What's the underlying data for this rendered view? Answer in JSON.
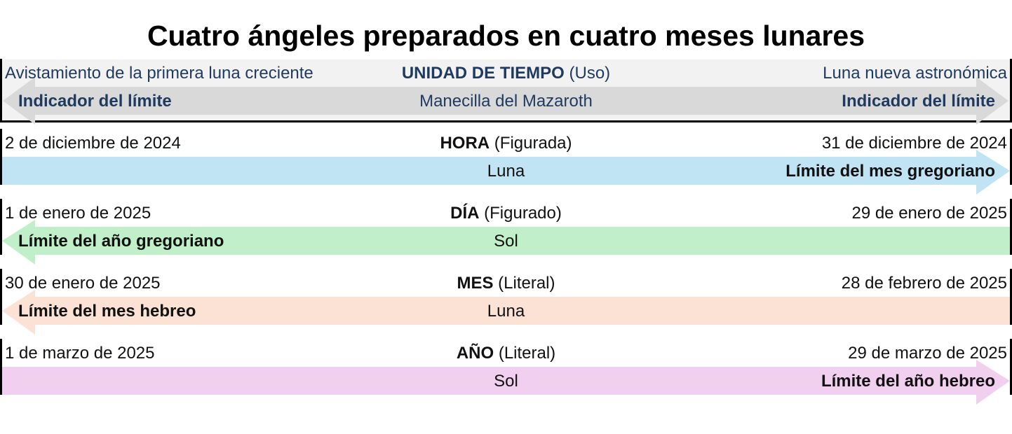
{
  "title": "Cuatro ángeles preparados en cuatro meses lunares",
  "header": {
    "left_top": "Avistamiento de la primera luna creciente",
    "center_top_bold": "UNIDAD DE TIEMPO",
    "center_top_rest": " (Uso)",
    "right_top": "Luna nueva astronómica",
    "left_bottom": "Indicador del límite",
    "center_bottom": "Manecilla del Mazaroth",
    "right_bottom": "Indicador del límite",
    "arrow_color": "#d9d9d9",
    "text_color": "#1f3a5f"
  },
  "rows": [
    {
      "start": "2 de diciembre de 2024",
      "unit_bold": "HORA",
      "unit_rest": " (Figurada)",
      "end": "31 de diciembre de 2024",
      "body": "Luna",
      "limit": "Límite del mes gregoriano",
      "direction": "right",
      "color": "#c0e4f4"
    },
    {
      "start": "1 de enero de 2025",
      "unit_bold": "DÍA",
      "unit_rest": " (Figurado)",
      "end": "29 de enero de 2025",
      "body": "Sol",
      "limit": "Límite del año gregoriano",
      "direction": "left",
      "color": "#c1efca"
    },
    {
      "start": "30 de enero de 2025",
      "unit_bold": "MES",
      "unit_rest": " (Literal)",
      "end": "28 de febrero de 2025",
      "body": "Luna",
      "limit": "Límite del mes hebreo",
      "direction": "left",
      "color": "#fbe2d5"
    },
    {
      "start": "1 de marzo de 2025",
      "unit_bold": "AÑO",
      "unit_rest": " (Literal)",
      "end": "29 de marzo de 2025",
      "body": "Sol",
      "limit": "Límite del año hebreo",
      "direction": "right",
      "color": "#f1cfee"
    }
  ]
}
